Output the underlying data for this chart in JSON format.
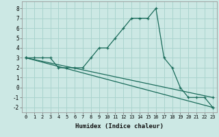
{
  "xlabel": "Humidex (Indice chaleur)",
  "bg_color": "#cce8e4",
  "grid_color": "#aad4ce",
  "line_color": "#1a6b5a",
  "xlim": [
    -0.5,
    23.5
  ],
  "ylim": [
    -2.5,
    8.7
  ],
  "xticks": [
    0,
    1,
    2,
    3,
    4,
    5,
    6,
    7,
    8,
    9,
    10,
    11,
    12,
    13,
    14,
    15,
    16,
    17,
    18,
    19,
    20,
    21,
    22,
    23
  ],
  "yticks": [
    -2,
    -1,
    0,
    1,
    2,
    3,
    4,
    5,
    6,
    7,
    8
  ],
  "series1_x": [
    0,
    1,
    2,
    3,
    4,
    5,
    6,
    7,
    8,
    9,
    10,
    11,
    12,
    13,
    14,
    15,
    16,
    17,
    18,
    19,
    20,
    21,
    22,
    23
  ],
  "series1_y": [
    3,
    3,
    3,
    3,
    2,
    2,
    2,
    2,
    3,
    4,
    4,
    5,
    6,
    7,
    7,
    7,
    8,
    3,
    2,
    0,
    -1,
    -1,
    -1,
    -2
  ],
  "series2_x": [
    0,
    23
  ],
  "series2_y": [
    3,
    -1
  ],
  "series3_x": [
    0,
    23
  ],
  "series3_y": [
    3,
    -2
  ]
}
